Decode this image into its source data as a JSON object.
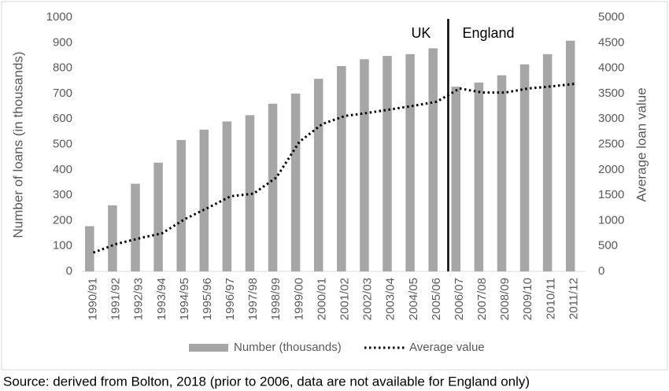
{
  "chart_data": {
    "type": "bar-line",
    "categories": [
      "1990/91",
      "1991/92",
      "1992/93",
      "1993/94",
      "1994/95",
      "1995/96",
      "1996/97",
      "1997/98",
      "1998/99",
      "1999/00",
      "2000/01",
      "2001/02",
      "2002/03",
      "2003/04",
      "2004/05",
      "2005/06",
      "2006/07",
      "2007/08",
      "2008/09",
      "2009/10",
      "2010/11",
      "2011/12"
    ],
    "series": [
      {
        "name": "Number (thousands)",
        "type": "bar",
        "color": "#a6a6a6",
        "values": [
          178,
          260,
          345,
          428,
          517,
          558,
          590,
          615,
          660,
          700,
          758,
          808,
          835,
          848,
          855,
          878,
          727,
          743,
          772,
          815,
          855,
          908
        ]
      },
      {
        "name": "Average value",
        "type": "line",
        "color": "#000000",
        "axis": "y2",
        "values": [
          370,
          540,
          650,
          750,
          1030,
          1250,
          1480,
          1530,
          1850,
          2550,
          2900,
          3060,
          3120,
          3190,
          3260,
          3340,
          3600,
          3520,
          3520,
          3600,
          3640,
          3690
        ]
      }
    ],
    "y_label": "Number of loans (in thousands)",
    "y2_label": "Average loan value",
    "ylim": [
      0,
      1000
    ],
    "yticks": [
      0,
      100,
      200,
      300,
      400,
      500,
      600,
      700,
      800,
      900,
      1000
    ],
    "y2lim": [
      0,
      5000
    ],
    "y2ticks": [
      0,
      500,
      1000,
      1500,
      2000,
      2500,
      3000,
      3500,
      4000,
      4500,
      5000
    ],
    "grid": false,
    "legend": "bottom",
    "annotations": [
      "UK",
      "England"
    ],
    "source": "Source: derived from Bolton, 2018 (prior to 2006, data are not available for England only)"
  }
}
